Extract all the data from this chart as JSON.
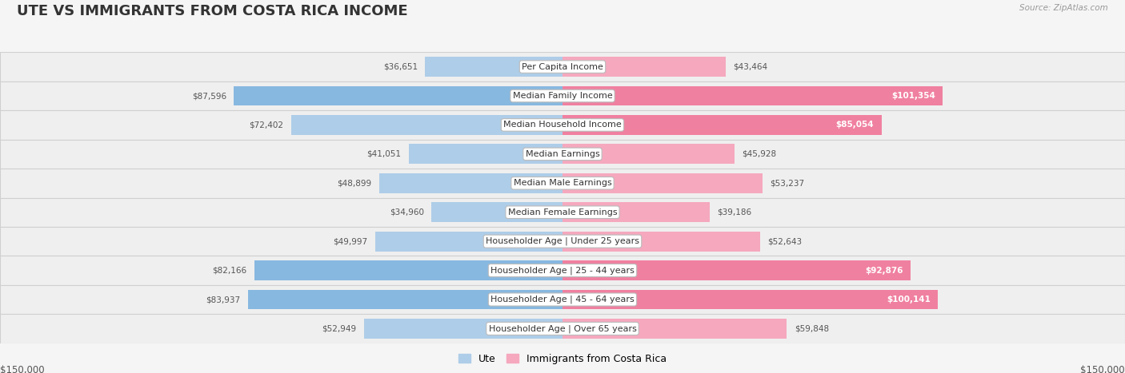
{
  "title": "UTE VS IMMIGRANTS FROM COSTA RICA INCOME",
  "source": "Source: ZipAtlas.com",
  "categories": [
    "Per Capita Income",
    "Median Family Income",
    "Median Household Income",
    "Median Earnings",
    "Median Male Earnings",
    "Median Female Earnings",
    "Householder Age | Under 25 years",
    "Householder Age | 25 - 44 years",
    "Householder Age | 45 - 64 years",
    "Householder Age | Over 65 years"
  ],
  "ute_values": [
    36651,
    87596,
    72402,
    41051,
    48899,
    34960,
    49997,
    82166,
    83937,
    52949
  ],
  "immigrant_values": [
    43464,
    101354,
    85054,
    45928,
    53237,
    39186,
    52643,
    92876,
    100141,
    59848
  ],
  "ute_color": "#87b8e0",
  "immigrant_color": "#f080a0",
  "ute_color_light": "#aecde8",
  "immigrant_color_light": "#f5a8be",
  "max_value": 150000,
  "row_bg_odd": "#f2f2f2",
  "row_bg_even": "#e8e8e8",
  "xlabel_left": "$150,000",
  "xlabel_right": "$150,000",
  "legend_ute": "Ute",
  "legend_immigrant": "Immigrants from Costa Rica",
  "title_fontsize": 13,
  "cat_fontsize": 8.0,
  "val_fontsize": 7.5,
  "white_threshold": 80000,
  "large_bar_threshold": 80000
}
